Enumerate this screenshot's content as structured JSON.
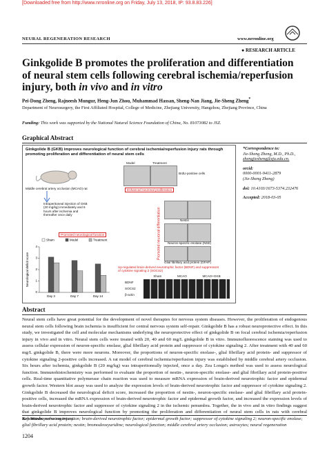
{
  "header": {
    "download_note": "[Downloaded free from http://www.nrronline.org on Friday, July 13, 2018, IP: 93.8.83.226]",
    "journal": "NEURAL REGENERATION RESEARCH",
    "website": "www.nrronline.org",
    "article_type": "RESEARCH ARTICLE"
  },
  "title": [
    "Ginkgolide B promotes the proliferation and differentiation of neural stem cells following cerebral ischemia/reperfusion injury, both ",
    "in vivo",
    " and ",
    "in vitro"
  ],
  "authors": "Pei-Dong Zheng, Rajneesh Mungur, Heng-Jun Zhou, Muhammad Hassan, Sheng-Nan Jiang, Jie-Sheng Zheng",
  "author_mark": "*",
  "affiliation": "Department of Neurosurgery, the First Affiliated Hospital, College of Medicine, Zhejiang University, Hangzhou, Zhejiang Province, China",
  "funding": {
    "label": "Funding:",
    "text": "This work was supported by the National Natural Science Foundation of China, No. 81073082 to JSZ."
  },
  "graphical_abstract": {
    "heading": "Graphical Abstract",
    "title": "Ginkgolide B (GKB) improves neurological function of cerebral ischemia/reperfusion injury rats through promoting proliferation and differentiation of neural stem cells",
    "labels": {
      "model": "Model",
      "treatment": "Treatment",
      "brdu": "BrdU-positive cells",
      "mcao": "Middle cerebral artery occlusion (MCAO) rat",
      "injection": "Intraperitoneal injection of GKB (20 mg/kg) immediately and 6 hours after ischemia and thereafter once daily",
      "proliferation": "Enhanced neuronal proliferation",
      "function": "Promoted neurological function",
      "differentiation": "Promoted neuronal differentiation",
      "nestin": "Nestin",
      "nse": "Neuron-specific enolase (NSE)",
      "gfap": "Glial fibrillary acid protein (GFAP)",
      "upregulated": "Up-regulated brain-derived neurotrophic factor (BDNF) and suppressors of cytokine signaling 2 (SOCS2)",
      "blot_groups": [
        "Sham",
        "MCAO",
        "MCAO+GKB"
      ],
      "blot_rows": [
        "BDNF",
        "SOCS2",
        "β-actin"
      ]
    },
    "chart_data": {
      "type": "bar",
      "ylabel": "Neurological deficit score",
      "categories": [
        "Day 3",
        "Day 7",
        "Day 14"
      ],
      "series": [
        {
          "name": "Sham",
          "color": "#ffffff",
          "values": [
            0,
            0,
            0
          ]
        },
        {
          "name": "Model",
          "color": "#555555",
          "values": [
            3.1,
            2.8,
            2.5
          ]
        },
        {
          "name": "Treatment",
          "color": "#bbbbbb",
          "values": [
            2.6,
            1.9,
            1.5
          ]
        }
      ],
      "ylim": [
        0,
        4
      ],
      "yticks": [
        0,
        1,
        2,
        3,
        4
      ]
    }
  },
  "sidebar": {
    "correspondence_label": "*Correspondence to:",
    "correspondence_name": "Jie-Sheng Zheng, M.D., Ph.D.,",
    "email": "zhengjiesheng@zju.edu.cn.",
    "orcid_label": "orcid:",
    "orcid": "0000-0001-9411-2879",
    "orcid_name": "(Jie-Sheng Zheng)",
    "doi_label": "doi:",
    "doi": "10.4103/1673-5374.232476",
    "accepted_label": "Accepted:",
    "accepted": "2018-03-05"
  },
  "abstract": {
    "heading": "Abstract",
    "text": "Neural stem cells have great potential for the development of novel therapies for nervous system diseases. However, the proliferation of endogenous neural stem cells following brain ischemia is insufficient for central nervous system self-repair. Ginkgolide B has a robust neuroprotective effect. In this study, we investigated the cell and molecular mechanisms underlying the neuroprotective effect of ginkgolide B on focal cerebral ischemia/reperfusion injury in vivo and in vitro. Neural stem cells were treated with 20, 40 and 60 mg/L ginkgolide B in vitro. Immunofluorescence staining was used to assess cellular expression of neuron-specific enolase, glial fibrillary acid protein and suppressor of cytokine signaling 2. After treatment with 40 and 60 mg/L ginkgolide B, there were more neurons. Moreover, the proportions of neuron-specific enolase-, glial fibrillary acid protein- and suppressor of cytokine signaling 2-positive cells increased. A rat model of cerebral ischemia/reperfusion injury was established by middle cerebral artery occlusion. Six hours after ischemia, ginkgolide B (20 mg/kg) was intraperitoneally injected, once a day. Zea Longa's method was used to assess neurological function. Immunohistochemistry was performed to evaluate the proportion of nestin-, neuron-specific enolase- and glial fibrillary acid protein-positive cells. Real-time quantitative polymerase chain reaction was used to measure mRNA expression of brain-derived neurotrophic factor and epidermal growth factor. Western blot assay was used to analyze the expression levels of brain-derived neurotrophic factor and suppressor of cytokine signaling 2. Ginkgolide B decreased the neurological deficit score, increased the proportion of nestin-, neuron-specific enolase- and glial fibrillary acid protein-positive cells, increased the mRNA expression of brain-derived neurotrophic factor and epidermal growth factor, and increased the expression levels of brain-derived neurotrophic factor and suppressor of cytokine signaling 2 in the ischemic penumbra. Together, the in vivo and in vitro findings suggest that ginkgolide B improves neurological function by promoting the proliferation and differentiation of neural stem cells in rats with cerebral ischemia/reperfusion injury."
  },
  "keywords": {
    "label": "Key Words:",
    "text": "nerve regeneration; brain-derived neurotrophic factor; epidermal growth factor; suppressor of cytokine signaling 2; neuron-specific enolase; glial fibrillary acid protein; nestin; bromodeoxyuridine; neurological function; middle cerebral artery occlusion; astrocytes; neural regeneration"
  },
  "page_number": "1204"
}
